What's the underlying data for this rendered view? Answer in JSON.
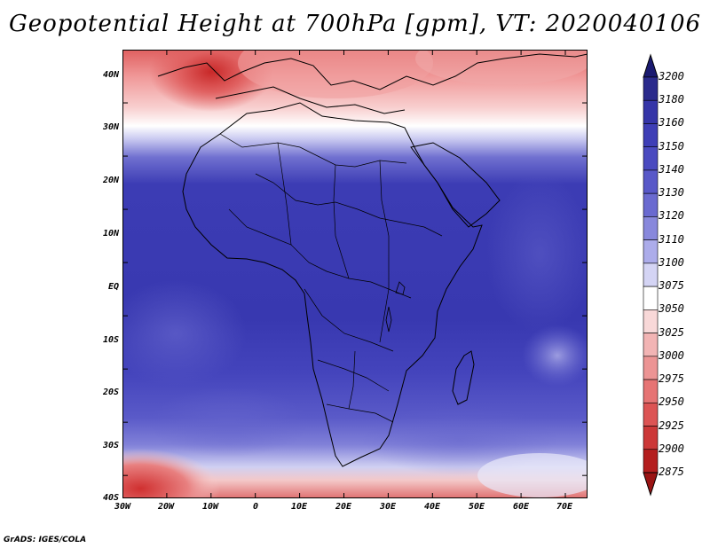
{
  "title": "Geopotential Height at 700hPa [gpm], VT: 2020040106",
  "footer": "GrADS: IGES/COLA",
  "map": {
    "lat_labels": [
      "40N",
      "30N",
      "20N",
      "10N",
      "EQ",
      "10S",
      "20S",
      "30S",
      "40S"
    ],
    "lon_labels": [
      "30W",
      "20W",
      "10W",
      "0",
      "10E",
      "20E",
      "30E",
      "40E",
      "50E",
      "60E",
      "70E"
    ]
  },
  "colorbar": {
    "levels": [
      "3200",
      "3180",
      "3160",
      "3150",
      "3140",
      "3130",
      "3120",
      "3110",
      "3100",
      "3075",
      "3050",
      "3025",
      "3000",
      "2975",
      "2950",
      "2925",
      "2900",
      "2875"
    ],
    "colors": [
      "#2a2a8c",
      "#3535a8",
      "#3e3eb6",
      "#4a4ac0",
      "#5858c8",
      "#6a6ad0",
      "#8888dc",
      "#acacea",
      "#d4d4f4",
      "#ffffff",
      "#f8d8d8",
      "#f2b4b4",
      "#ec9494",
      "#e67474",
      "#dc5454",
      "#cc3838",
      "#b41e1e"
    ],
    "top_color": "#1a1a70",
    "bottom_color": "#9a1414"
  }
}
